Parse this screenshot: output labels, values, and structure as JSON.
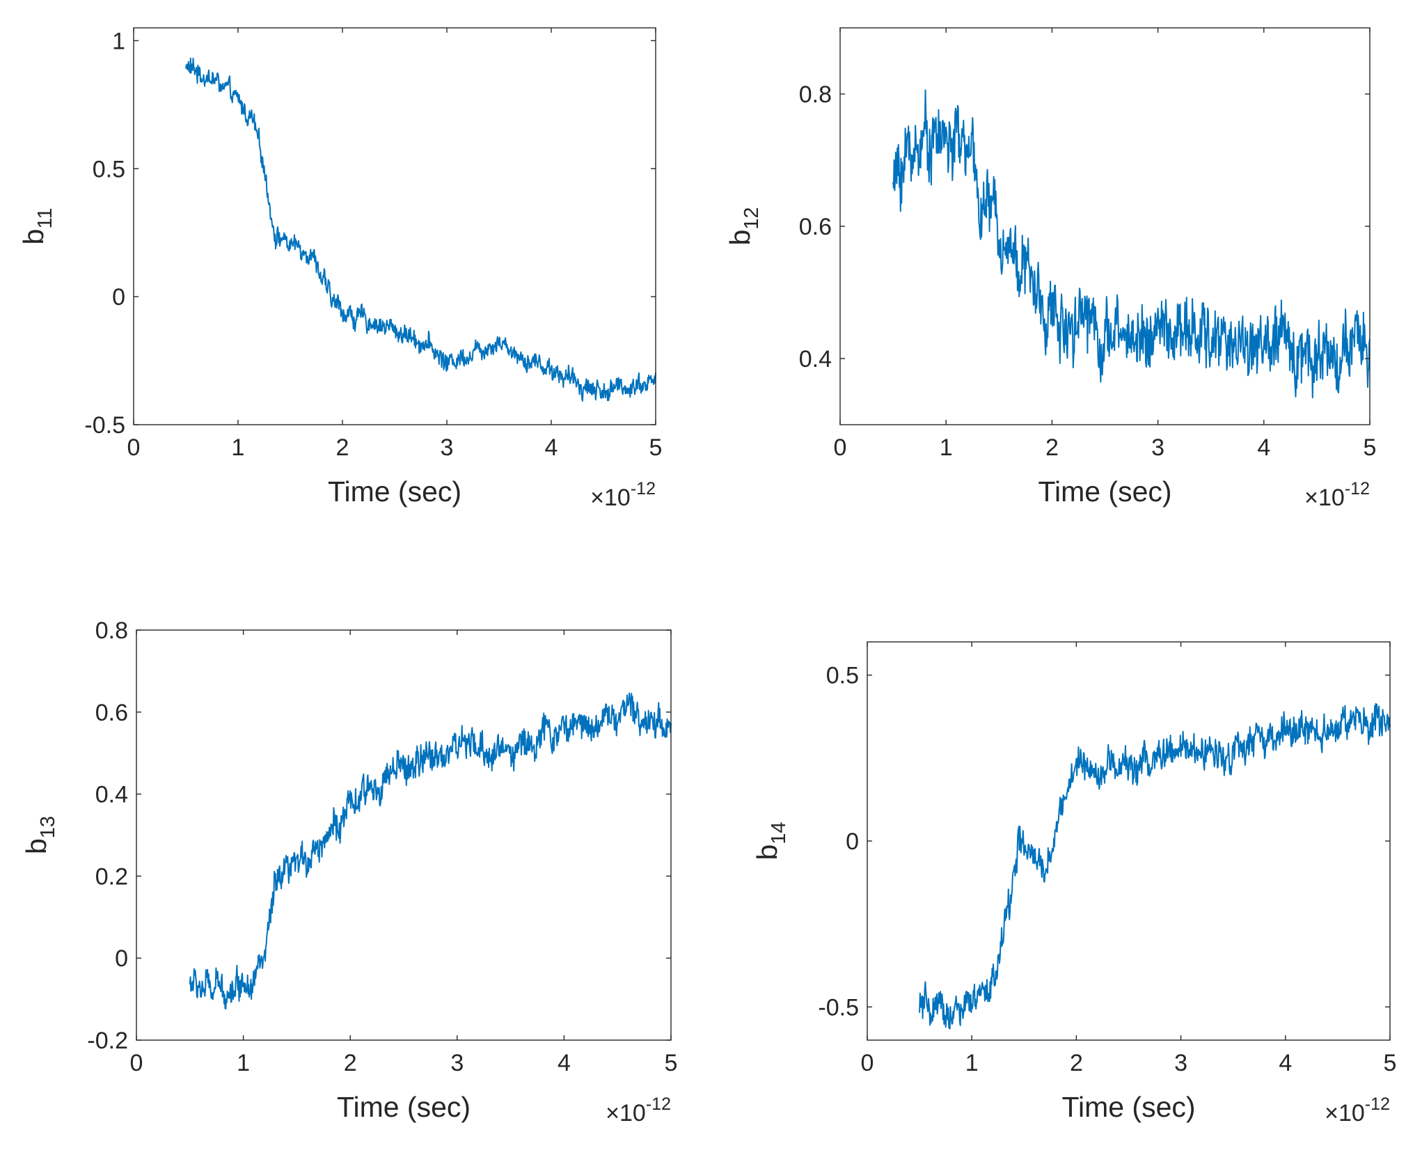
{
  "chart_data": [
    {
      "type": "line",
      "ylabel_base": "b",
      "ylabel_sub": "11",
      "xlabel": "Time (sec)",
      "x_exponent": {
        "times": "×",
        "base": "10",
        "power": "-12"
      },
      "xlim": [
        0,
        5
      ],
      "ylim": [
        -0.5,
        1.05
      ],
      "xticks": [
        0,
        1,
        2,
        3,
        4,
        5
      ],
      "xtick_labels": [
        "0",
        "1",
        "2",
        "3",
        "4",
        "5"
      ],
      "yticks": [
        -0.5,
        0,
        0.5,
        1
      ],
      "ytick_labels": [
        "-0.5",
        "0",
        "0.5",
        "1"
      ],
      "series": [
        {
          "name": "b11",
          "color": "#0072bd",
          "trend_x": [
            0.5,
            0.6,
            0.8,
            1.0,
            1.15,
            1.25,
            1.35,
            1.5,
            1.7,
            1.9,
            2.1,
            2.3,
            2.5,
            2.8,
            3.0,
            3.2,
            3.5,
            3.7,
            4.0,
            4.2,
            4.5,
            4.8,
            5.0
          ],
          "trend_y": [
            0.9,
            0.88,
            0.84,
            0.76,
            0.68,
            0.5,
            0.25,
            0.2,
            0.18,
            -0.02,
            -0.08,
            -0.1,
            -0.13,
            -0.18,
            -0.26,
            -0.22,
            -0.17,
            -0.23,
            -0.28,
            -0.33,
            -0.37,
            -0.34,
            -0.33
          ],
          "noise": 0.035
        }
      ]
    },
    {
      "type": "line",
      "ylabel_base": "b",
      "ylabel_sub": "12",
      "xlabel": "Time (sec)",
      "x_exponent": {
        "times": "×",
        "base": "10",
        "power": "-12"
      },
      "xlim": [
        0,
        5
      ],
      "ylim": [
        0.3,
        0.9
      ],
      "xticks": [
        0,
        1,
        2,
        3,
        4,
        5
      ],
      "xtick_labels": [
        "0",
        "1",
        "2",
        "3",
        "4",
        "5"
      ],
      "yticks": [
        0.4,
        0.6,
        0.8
      ],
      "ytick_labels": [
        "0.4",
        "0.6",
        "0.8"
      ],
      "series": [
        {
          "name": "b12",
          "color": "#0072bd",
          "trend_x": [
            0.5,
            0.6,
            0.8,
            1.0,
            1.2,
            1.3,
            1.5,
            1.7,
            1.9,
            2.1,
            2.3,
            2.5,
            3.0,
            3.5,
            4.0,
            4.5,
            5.0
          ],
          "trend_y": [
            0.66,
            0.7,
            0.74,
            0.73,
            0.72,
            0.65,
            0.6,
            0.55,
            0.48,
            0.45,
            0.48,
            0.43,
            0.44,
            0.43,
            0.42,
            0.41,
            0.41
          ],
          "noise": 0.045
        }
      ]
    },
    {
      "type": "line",
      "ylabel_base": "b",
      "ylabel_sub": "13",
      "xlabel": "Time (sec)",
      "x_exponent": {
        "times": "×",
        "base": "10",
        "power": "-12"
      },
      "xlim": [
        0,
        5
      ],
      "ylim": [
        -0.2,
        0.8
      ],
      "xticks": [
        0,
        1,
        2,
        3,
        4,
        5
      ],
      "xtick_labels": [
        "0",
        "1",
        "2",
        "3",
        "4",
        "5"
      ],
      "yticks": [
        -0.2,
        0,
        0.2,
        0.4,
        0.6,
        0.8
      ],
      "ytick_labels": [
        "-0.2",
        "0",
        "0.2",
        "0.4",
        "0.6",
        "0.8"
      ],
      "series": [
        {
          "name": "b13",
          "color": "#0072bd",
          "trend_x": [
            0.5,
            0.7,
            0.9,
            1.1,
            1.2,
            1.3,
            1.5,
            1.7,
            2.0,
            2.3,
            2.6,
            3.0,
            3.3,
            3.6,
            4.0,
            4.3,
            4.6,
            5.0
          ],
          "trend_y": [
            -0.06,
            -0.08,
            -0.07,
            -0.04,
            0.0,
            0.17,
            0.22,
            0.28,
            0.36,
            0.44,
            0.47,
            0.52,
            0.5,
            0.52,
            0.56,
            0.58,
            0.6,
            0.57
          ],
          "noise": 0.035
        }
      ]
    },
    {
      "type": "line",
      "ylabel_base": "b",
      "ylabel_sub": "14",
      "xlabel": "Time (sec)",
      "x_exponent": {
        "times": "×",
        "base": "10",
        "power": "-12"
      },
      "xlim": [
        0,
        5
      ],
      "ylim": [
        -0.6,
        0.6
      ],
      "xticks": [
        0,
        1,
        2,
        3,
        4,
        5
      ],
      "xtick_labels": [
        "0",
        "1",
        "2",
        "3",
        "4",
        "5"
      ],
      "yticks": [
        -0.5,
        0,
        0.5
      ],
      "ytick_labels": [
        "-0.5",
        "0",
        "0.5"
      ],
      "series": [
        {
          "name": "b14",
          "color": "#0072bd",
          "trend_x": [
            0.5,
            0.7,
            0.9,
            1.1,
            1.25,
            1.35,
            1.45,
            1.55,
            1.7,
            1.85,
            2.0,
            2.3,
            2.6,
            3.0,
            3.5,
            4.0,
            4.5,
            5.0
          ],
          "trend_y": [
            -0.5,
            -0.52,
            -0.51,
            -0.48,
            -0.38,
            -0.2,
            0.0,
            -0.05,
            -0.1,
            0.1,
            0.23,
            0.22,
            0.23,
            0.27,
            0.27,
            0.32,
            0.35,
            0.35
          ],
          "noise": 0.045
        }
      ]
    }
  ]
}
